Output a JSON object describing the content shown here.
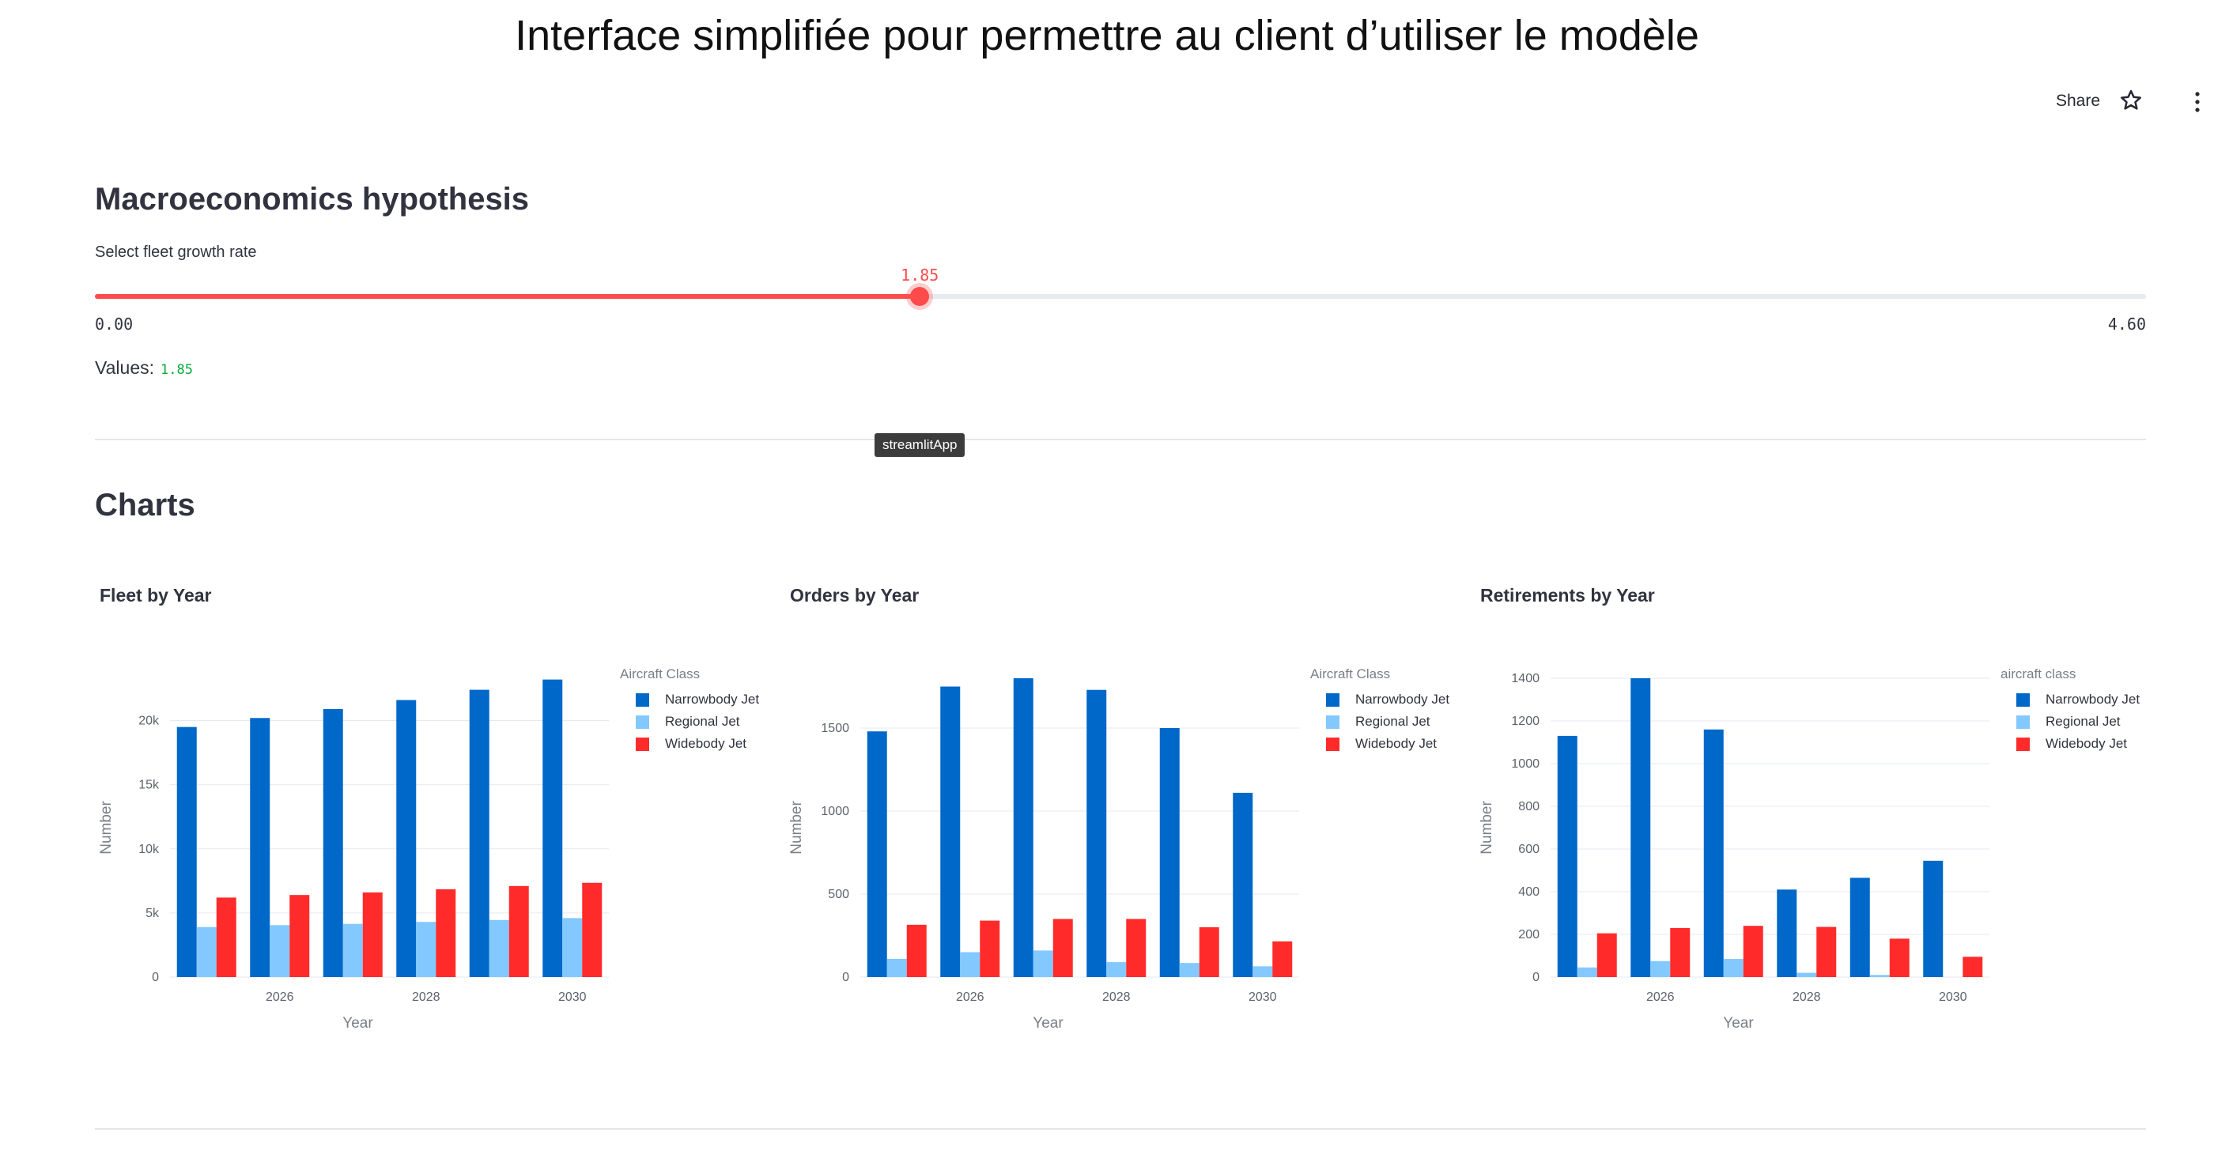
{
  "header": {
    "title": "Interface simplifiée pour permettre au client d’utiliser le modèle",
    "share_label": "Share"
  },
  "macro": {
    "heading": "Macroeconomics hypothesis",
    "slider_label": "Select fleet growth rate",
    "slider_value": 1.85,
    "slider_value_text": "1.85",
    "slider_min": 0,
    "slider_max": 4.6,
    "slider_min_text": "0.00",
    "slider_max_text": "4.60",
    "values_label": "Values:",
    "values_text": "1.85",
    "accent_color": "#ff4b4b"
  },
  "tooltip": {
    "text": "streamlitApp"
  },
  "charts_section": {
    "heading": "Charts"
  },
  "chart_data": [
    {
      "type": "bar",
      "title": "Fleet by Year",
      "xlabel": "Year",
      "ylabel": "Number",
      "legend_title": "Aircraft Class",
      "legend_position": "top-right",
      "categories": [
        2025,
        2026,
        2027,
        2028,
        2029,
        2030
      ],
      "x_tick_labels": [
        "2026",
        "2028",
        "2030"
      ],
      "y_ticks": [
        0,
        5000,
        10000,
        15000,
        20000
      ],
      "y_tick_labels": [
        "0",
        "5k",
        "10k",
        "15k",
        "20k"
      ],
      "ylim": [
        0,
        23300
      ],
      "grid": true,
      "series": [
        {
          "name": "Narrowbody Jet",
          "color": "#0068c9",
          "values": [
            19500,
            20200,
            20900,
            21600,
            22400,
            23200
          ]
        },
        {
          "name": "Regional Jet",
          "color": "#83c9ff",
          "values": [
            3900,
            4050,
            4150,
            4300,
            4450,
            4600
          ]
        },
        {
          "name": "Widebody Jet",
          "color": "#ff2b2b",
          "values": [
            6200,
            6400,
            6600,
            6850,
            7100,
            7350
          ]
        }
      ]
    },
    {
      "type": "bar",
      "title": "Orders by Year",
      "xlabel": "Year",
      "ylabel": "Number",
      "legend_title": "Aircraft Class",
      "legend_position": "top-right",
      "categories": [
        2025,
        2026,
        2027,
        2028,
        2029,
        2030
      ],
      "x_tick_labels": [
        "2026",
        "2028",
        "2030"
      ],
      "y_ticks": [
        0,
        500,
        1000,
        1500
      ],
      "y_tick_labels": [
        "0",
        "500",
        "1000",
        "1500"
      ],
      "ylim": [
        0,
        1800
      ],
      "grid": true,
      "series": [
        {
          "name": "Narrowbody Jet",
          "color": "#0068c9",
          "values": [
            1480,
            1750,
            1800,
            1730,
            1500,
            1110
          ]
        },
        {
          "name": "Regional Jet",
          "color": "#83c9ff",
          "values": [
            110,
            150,
            160,
            90,
            85,
            65
          ]
        },
        {
          "name": "Widebody Jet",
          "color": "#ff2b2b",
          "values": [
            315,
            340,
            350,
            350,
            300,
            215
          ]
        }
      ]
    },
    {
      "type": "bar",
      "title": "Retirements by Year",
      "xlabel": "Year",
      "ylabel": "Number",
      "legend_title": "aircraft class",
      "legend_position": "top-right",
      "categories": [
        2025,
        2026,
        2027,
        2028,
        2029,
        2030
      ],
      "x_tick_labels": [
        "2026",
        "2028",
        "2030"
      ],
      "y_ticks": [
        0,
        200,
        400,
        600,
        800,
        1000,
        1200,
        1400
      ],
      "y_tick_labels": [
        "0",
        "200",
        "400",
        "600",
        "800",
        "1000",
        "1200",
        "1400"
      ],
      "ylim": [
        0,
        1400
      ],
      "grid": true,
      "series": [
        {
          "name": "Narrowbody Jet",
          "color": "#0068c9",
          "values": [
            1130,
            1400,
            1160,
            410,
            465,
            545
          ]
        },
        {
          "name": "Regional Jet",
          "color": "#83c9ff",
          "values": [
            45,
            75,
            85,
            20,
            10,
            0
          ]
        },
        {
          "name": "Widebody Jet",
          "color": "#ff2b2b",
          "values": [
            205,
            230,
            240,
            235,
            180,
            95
          ]
        }
      ]
    }
  ]
}
